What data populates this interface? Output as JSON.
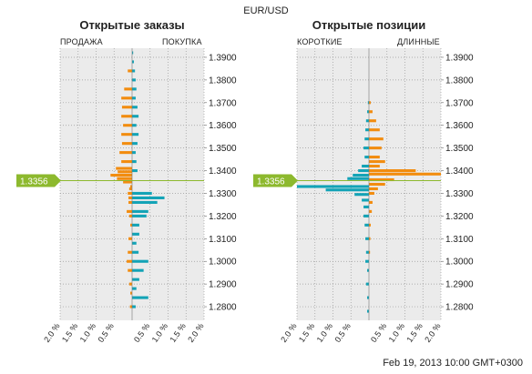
{
  "pair": "EUR/USD",
  "timestamp": "Feb 19, 2013 10:00 GMT+0300",
  "colors": {
    "sell": "#f28c0f",
    "buy": "#13a3b6",
    "price_tag": "#8db92e",
    "plot_bg": "#ebebeb"
  },
  "chart_data": [
    {
      "type": "bar",
      "orientation": "horizontal-butterfly",
      "title": "Открытые заказы",
      "left_label": "ПРОДАЖА",
      "right_label": "ПОКУПКА",
      "current_price": "1.3356",
      "y_ticks": [
        "1.3900",
        "1.3800",
        "1.3700",
        "1.3600",
        "1.3500",
        "1.3400",
        "1.3300",
        "1.3200",
        "1.3100",
        "1.3000",
        "1.2900",
        "1.2800"
      ],
      "x_ticks": [
        "2.0 %",
        "1.5 %",
        "1.0 %",
        "0.5 %",
        "0.5 %",
        "1.0 %",
        "1.5 %",
        "2.0 %"
      ],
      "ylim": [
        1.274,
        1.394
      ],
      "xlim": [
        -2.0,
        2.0
      ],
      "series": [
        {
          "name": "ПРОДАЖА",
          "color": "#f28c0f",
          "points": [
            [
              1.384,
              0.12
            ],
            [
              1.376,
              0.22
            ],
            [
              1.372,
              0.3
            ],
            [
              1.368,
              0.28
            ],
            [
              1.364,
              0.3
            ],
            [
              1.36,
              0.25
            ],
            [
              1.356,
              0.3
            ],
            [
              1.352,
              0.28
            ],
            [
              1.348,
              0.35
            ],
            [
              1.344,
              0.3
            ],
            [
              1.341,
              0.45
            ],
            [
              1.3395,
              0.4
            ],
            [
              1.338,
              0.6
            ],
            [
              1.3365,
              0.42
            ],
            [
              1.335,
              0.25
            ],
            [
              1.333,
              0.05
            ],
            [
              1.332,
              0.08
            ],
            [
              1.33,
              0.12
            ],
            [
              1.328,
              0.1
            ],
            [
              1.326,
              0.1
            ],
            [
              1.322,
              0.15
            ],
            [
              1.32,
              0.08
            ],
            [
              1.316,
              0.05
            ],
            [
              1.31,
              0.1
            ],
            [
              1.304,
              0.12
            ],
            [
              1.3,
              0.15
            ],
            [
              1.296,
              0.12
            ],
            [
              1.29,
              0.08
            ],
            [
              1.286,
              0.05
            ],
            [
              1.28,
              0.06
            ]
          ]
        },
        {
          "name": "ПОКУПКА",
          "color": "#13a3b6",
          "points": [
            [
              1.392,
              0.03
            ],
            [
              1.388,
              0.05
            ],
            [
              1.384,
              0.08
            ],
            [
              1.38,
              0.1
            ],
            [
              1.376,
              0.12
            ],
            [
              1.372,
              0.1
            ],
            [
              1.368,
              0.15
            ],
            [
              1.364,
              0.18
            ],
            [
              1.36,
              0.12
            ],
            [
              1.356,
              0.18
            ],
            [
              1.352,
              0.15
            ],
            [
              1.348,
              0.1
            ],
            [
              1.344,
              0.12
            ],
            [
              1.34,
              0.15
            ],
            [
              1.33,
              0.55
            ],
            [
              1.328,
              0.9
            ],
            [
              1.326,
              0.7
            ],
            [
              1.322,
              0.45
            ],
            [
              1.32,
              0.4
            ],
            [
              1.316,
              0.2
            ],
            [
              1.312,
              0.2
            ],
            [
              1.308,
              0.12
            ],
            [
              1.304,
              0.18
            ],
            [
              1.3,
              0.45
            ],
            [
              1.296,
              0.32
            ],
            [
              1.292,
              0.2
            ],
            [
              1.288,
              0.12
            ],
            [
              1.284,
              0.45
            ],
            [
              1.28,
              0.1
            ]
          ]
        }
      ]
    },
    {
      "type": "bar",
      "orientation": "horizontal-butterfly",
      "title": "Открытые позиции",
      "left_label": "КОРОТКИЕ",
      "right_label": "ДЛИННЫЕ",
      "current_price": "1.3356",
      "y_ticks": [
        "1.3900",
        "1.3800",
        "1.3700",
        "1.3600",
        "1.3500",
        "1.3400",
        "1.3300",
        "1.3200",
        "1.3100",
        "1.3000",
        "1.2900",
        "1.2800"
      ],
      "x_ticks": [
        "2.0 %",
        "1.5 %",
        "1.0 %",
        "0.5 %",
        "0.5 %",
        "1.0 %",
        "1.5 %",
        "2.0 %"
      ],
      "ylim": [
        1.274,
        1.394
      ],
      "xlim": [
        -2.0,
        2.0
      ],
      "series": [
        {
          "name": "КОРОТКИЕ",
          "color": "#13a3b6",
          "points": [
            [
              1.37,
              0.03
            ],
            [
              1.366,
              0.05
            ],
            [
              1.362,
              0.08
            ],
            [
              1.358,
              0.1
            ],
            [
              1.354,
              0.12
            ],
            [
              1.35,
              0.15
            ],
            [
              1.346,
              0.12
            ],
            [
              1.342,
              0.2
            ],
            [
              1.34,
              0.3
            ],
            [
              1.338,
              0.45
            ],
            [
              1.3365,
              0.6
            ],
            [
              1.333,
              2.0
            ],
            [
              1.3315,
              1.2
            ],
            [
              1.3295,
              0.4
            ],
            [
              1.327,
              0.2
            ],
            [
              1.324,
              0.15
            ],
            [
              1.32,
              0.15
            ],
            [
              1.316,
              0.12
            ],
            [
              1.31,
              0.1
            ],
            [
              1.304,
              0.08
            ],
            [
              1.3,
              0.1
            ],
            [
              1.296,
              0.05
            ],
            [
              1.29,
              0.08
            ],
            [
              1.284,
              0.05
            ],
            [
              1.278,
              0.05
            ]
          ]
        },
        {
          "name": "ДЛИННЫЕ",
          "color": "#f28c0f",
          "points": [
            [
              1.37,
              0.05
            ],
            [
              1.366,
              0.1
            ],
            [
              1.362,
              0.2
            ],
            [
              1.358,
              0.3
            ],
            [
              1.354,
              0.4
            ],
            [
              1.35,
              0.35
            ],
            [
              1.346,
              0.3
            ],
            [
              1.344,
              0.45
            ],
            [
              1.342,
              0.3
            ],
            [
              1.34,
              1.3
            ],
            [
              1.3385,
              2.0
            ],
            [
              1.336,
              0.7
            ],
            [
              1.334,
              0.45
            ],
            [
              1.332,
              0.25
            ],
            [
              1.33,
              0.15
            ],
            [
              1.326,
              0.1
            ],
            [
              1.322,
              0.08
            ],
            [
              1.316,
              0.05
            ],
            [
              1.31,
              0.04
            ],
            [
              1.304,
              0.03
            ]
          ]
        }
      ]
    }
  ]
}
